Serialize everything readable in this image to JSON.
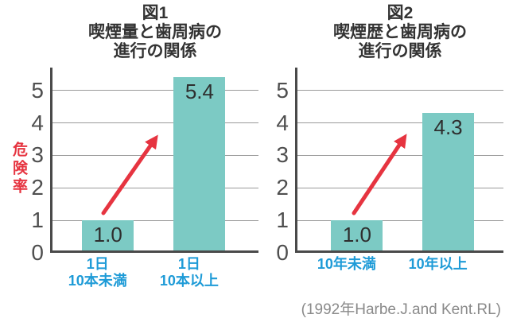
{
  "chart_data": [
    {
      "type": "bar",
      "title": "図1\n喫煙量と歯周病の\n進行の関係",
      "categories": [
        "1日\n10本未満",
        "1日\n10本以上"
      ],
      "values": [
        1.0,
        5.4
      ],
      "value_labels": [
        "1.0",
        "5.4"
      ],
      "ylabel": "危険率",
      "yticks": [
        0,
        1,
        2,
        3,
        4,
        5
      ],
      "ylim": [
        0,
        5.7
      ],
      "grid": true,
      "legend": "none",
      "annotation": "red up-right arrow from low bar toward high bar"
    },
    {
      "type": "bar",
      "title": "図2\n喫煙歴と歯周病の\n進行の関係",
      "categories": [
        "10年未満",
        "10年以上"
      ],
      "values": [
        1.0,
        4.3
      ],
      "value_labels": [
        "1.0",
        "4.3"
      ],
      "ylabel": "",
      "yticks": [
        0,
        1,
        2,
        3,
        4,
        5
      ],
      "ylim": [
        0,
        5.7
      ],
      "grid": true,
      "legend": "none",
      "annotation": "red up-right arrow from low bar toward high bar"
    }
  ],
  "citation": "(1992年Harbe.J.and Kent.RL)",
  "colors": {
    "bar": "#7ccac4",
    "arrow": "#e63440",
    "category_label": "#1e9bd7",
    "ylabel_text": "#e63440",
    "title_text": "#333333",
    "tick_label": "#4f4f4f",
    "gridline": "#9a9a9a",
    "axis": "#4a4a4a",
    "value_label": "#2e2e2e",
    "citation_text": "#8a8a8a",
    "background": "#ffffff"
  }
}
